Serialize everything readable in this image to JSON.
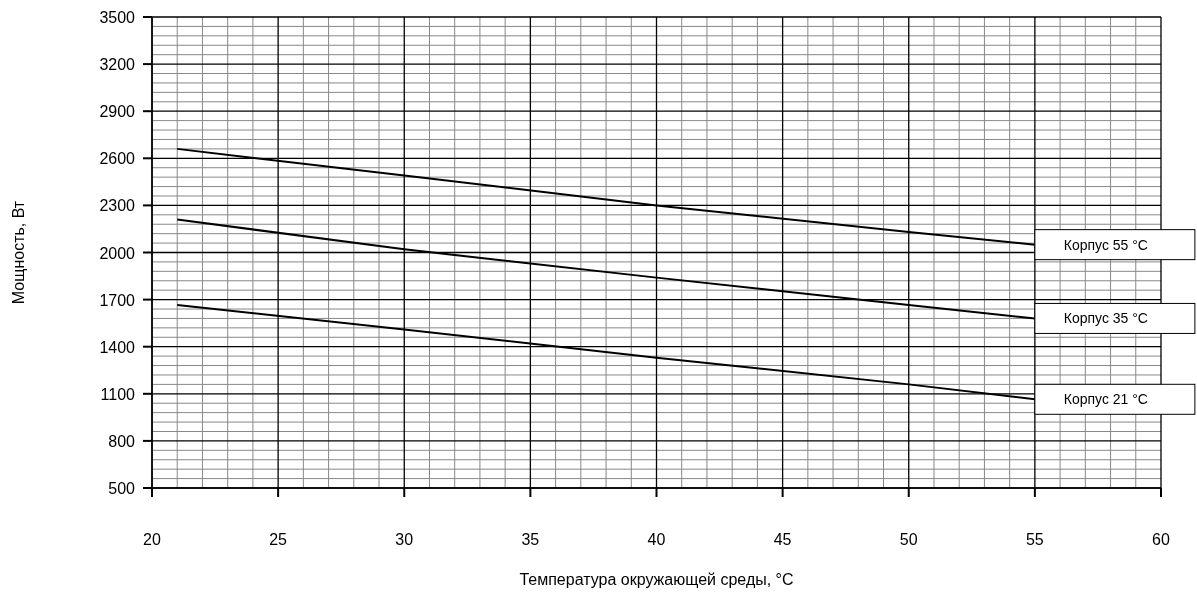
{
  "chart_data": {
    "type": "line",
    "xlabel": "Температура окружающей среды, °C",
    "ylabel": "Мощность, Вт",
    "xlim": [
      20,
      60
    ],
    "xticks": [
      20,
      25,
      30,
      35,
      40,
      45,
      50,
      55,
      60
    ],
    "ylim": [
      500,
      3500
    ],
    "yticks": [
      500,
      800,
      1100,
      1400,
      1700,
      2000,
      2300,
      2600,
      2900,
      3200,
      3500
    ],
    "grid": true,
    "marker": "none",
    "line_style": "solid",
    "series": [
      {
        "name": "Корпус 55 °C",
        "color": "#000000",
        "x": [
          21,
          30,
          40,
          50,
          55
        ],
        "values": [
          2660,
          2490,
          2300,
          2130,
          2050
        ]
      },
      {
        "name": "Корпус 35 °C",
        "color": "#000000",
        "x": [
          21,
          30,
          40,
          50,
          55
        ],
        "values": [
          2210,
          2020,
          1840,
          1665,
          1580
        ]
      },
      {
        "name": "Корпус 21 °C",
        "color": "#000000",
        "x": [
          21,
          30,
          40,
          50,
          55
        ],
        "values": [
          1665,
          1510,
          1330,
          1160,
          1065
        ]
      }
    ]
  }
}
